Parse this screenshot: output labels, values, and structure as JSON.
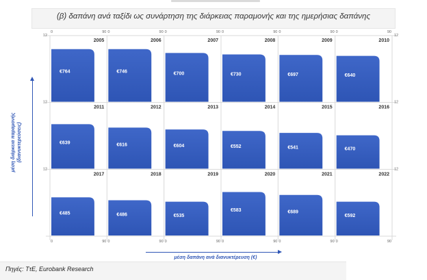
{
  "title": "(β) δαπάνη ανά ταξίδι ως συνάρτηση της διάρκειας παραμονής και της ημερήσιας δαπάνης",
  "source": "Πηγές: ΤτΕ, Eurobank Research",
  "colors": {
    "bar": "#2e55b5",
    "bar_light": "#3f67c8",
    "grid": "#d9d9d9",
    "axis_label": "#2e55b5"
  },
  "chart_data": {
    "type": "bar",
    "title": "(β) δαπάνη ανά ταξίδι ως συνάρτηση της διάρκειας παραμονής και της ημερήσιας δαπάνης",
    "xlabel": "μέση δαπάνη ανά διανυκτέρευση (€)",
    "ylabel": "μέση διάρκεια παραμονής (διανυκτερεύσεις)",
    "xlim": [
      0,
      90
    ],
    "ylim": [
      0,
      12
    ],
    "x_ticks": [
      "0",
      "90"
    ],
    "y_ticks": [
      "12"
    ],
    "grid": true,
    "panels": [
      {
        "year": "2005",
        "label": "€764",
        "x": 69.6,
        "y": 10.9
      },
      {
        "year": "2006",
        "label": "€746",
        "x": 69.6,
        "y": 10.9
      },
      {
        "year": "2007",
        "label": "€700",
        "x": 69.6,
        "y": 10.1
      },
      {
        "year": "2008",
        "label": "€730",
        "x": 69.6,
        "y": 9.8
      },
      {
        "year": "2009",
        "label": "€697",
        "x": 69.6,
        "y": 9.7
      },
      {
        "year": "2010",
        "label": "€640",
        "x": 69.6,
        "y": 9.5
      },
      {
        "year": "2011",
        "label": "€639",
        "x": 69.6,
        "y": 9.2
      },
      {
        "year": "2012",
        "label": "€616",
        "x": 69.6,
        "y": 8.5
      },
      {
        "year": "2013",
        "label": "€604",
        "x": 69.6,
        "y": 8.1
      },
      {
        "year": "2014",
        "label": "€552",
        "x": 69.6,
        "y": 7.8
      },
      {
        "year": "2015",
        "label": "€541",
        "x": 69.6,
        "y": 7.4
      },
      {
        "year": "2016",
        "label": "€470",
        "x": 69.6,
        "y": 6.9
      },
      {
        "year": "2017",
        "label": "€485",
        "x": 69.6,
        "y": 7.9
      },
      {
        "year": "2018",
        "label": "€486",
        "x": 69.6,
        "y": 7.3
      },
      {
        "year": "2019",
        "label": "€535",
        "x": 69.6,
        "y": 7.0
      },
      {
        "year": "2020",
        "label": "€583",
        "x": 69.6,
        "y": 9.0
      },
      {
        "year": "2021",
        "label": "€689",
        "x": 69.6,
        "y": 8.4
      },
      {
        "year": "2022",
        "label": "€592",
        "x": 69.6,
        "y": 7.0
      }
    ]
  }
}
